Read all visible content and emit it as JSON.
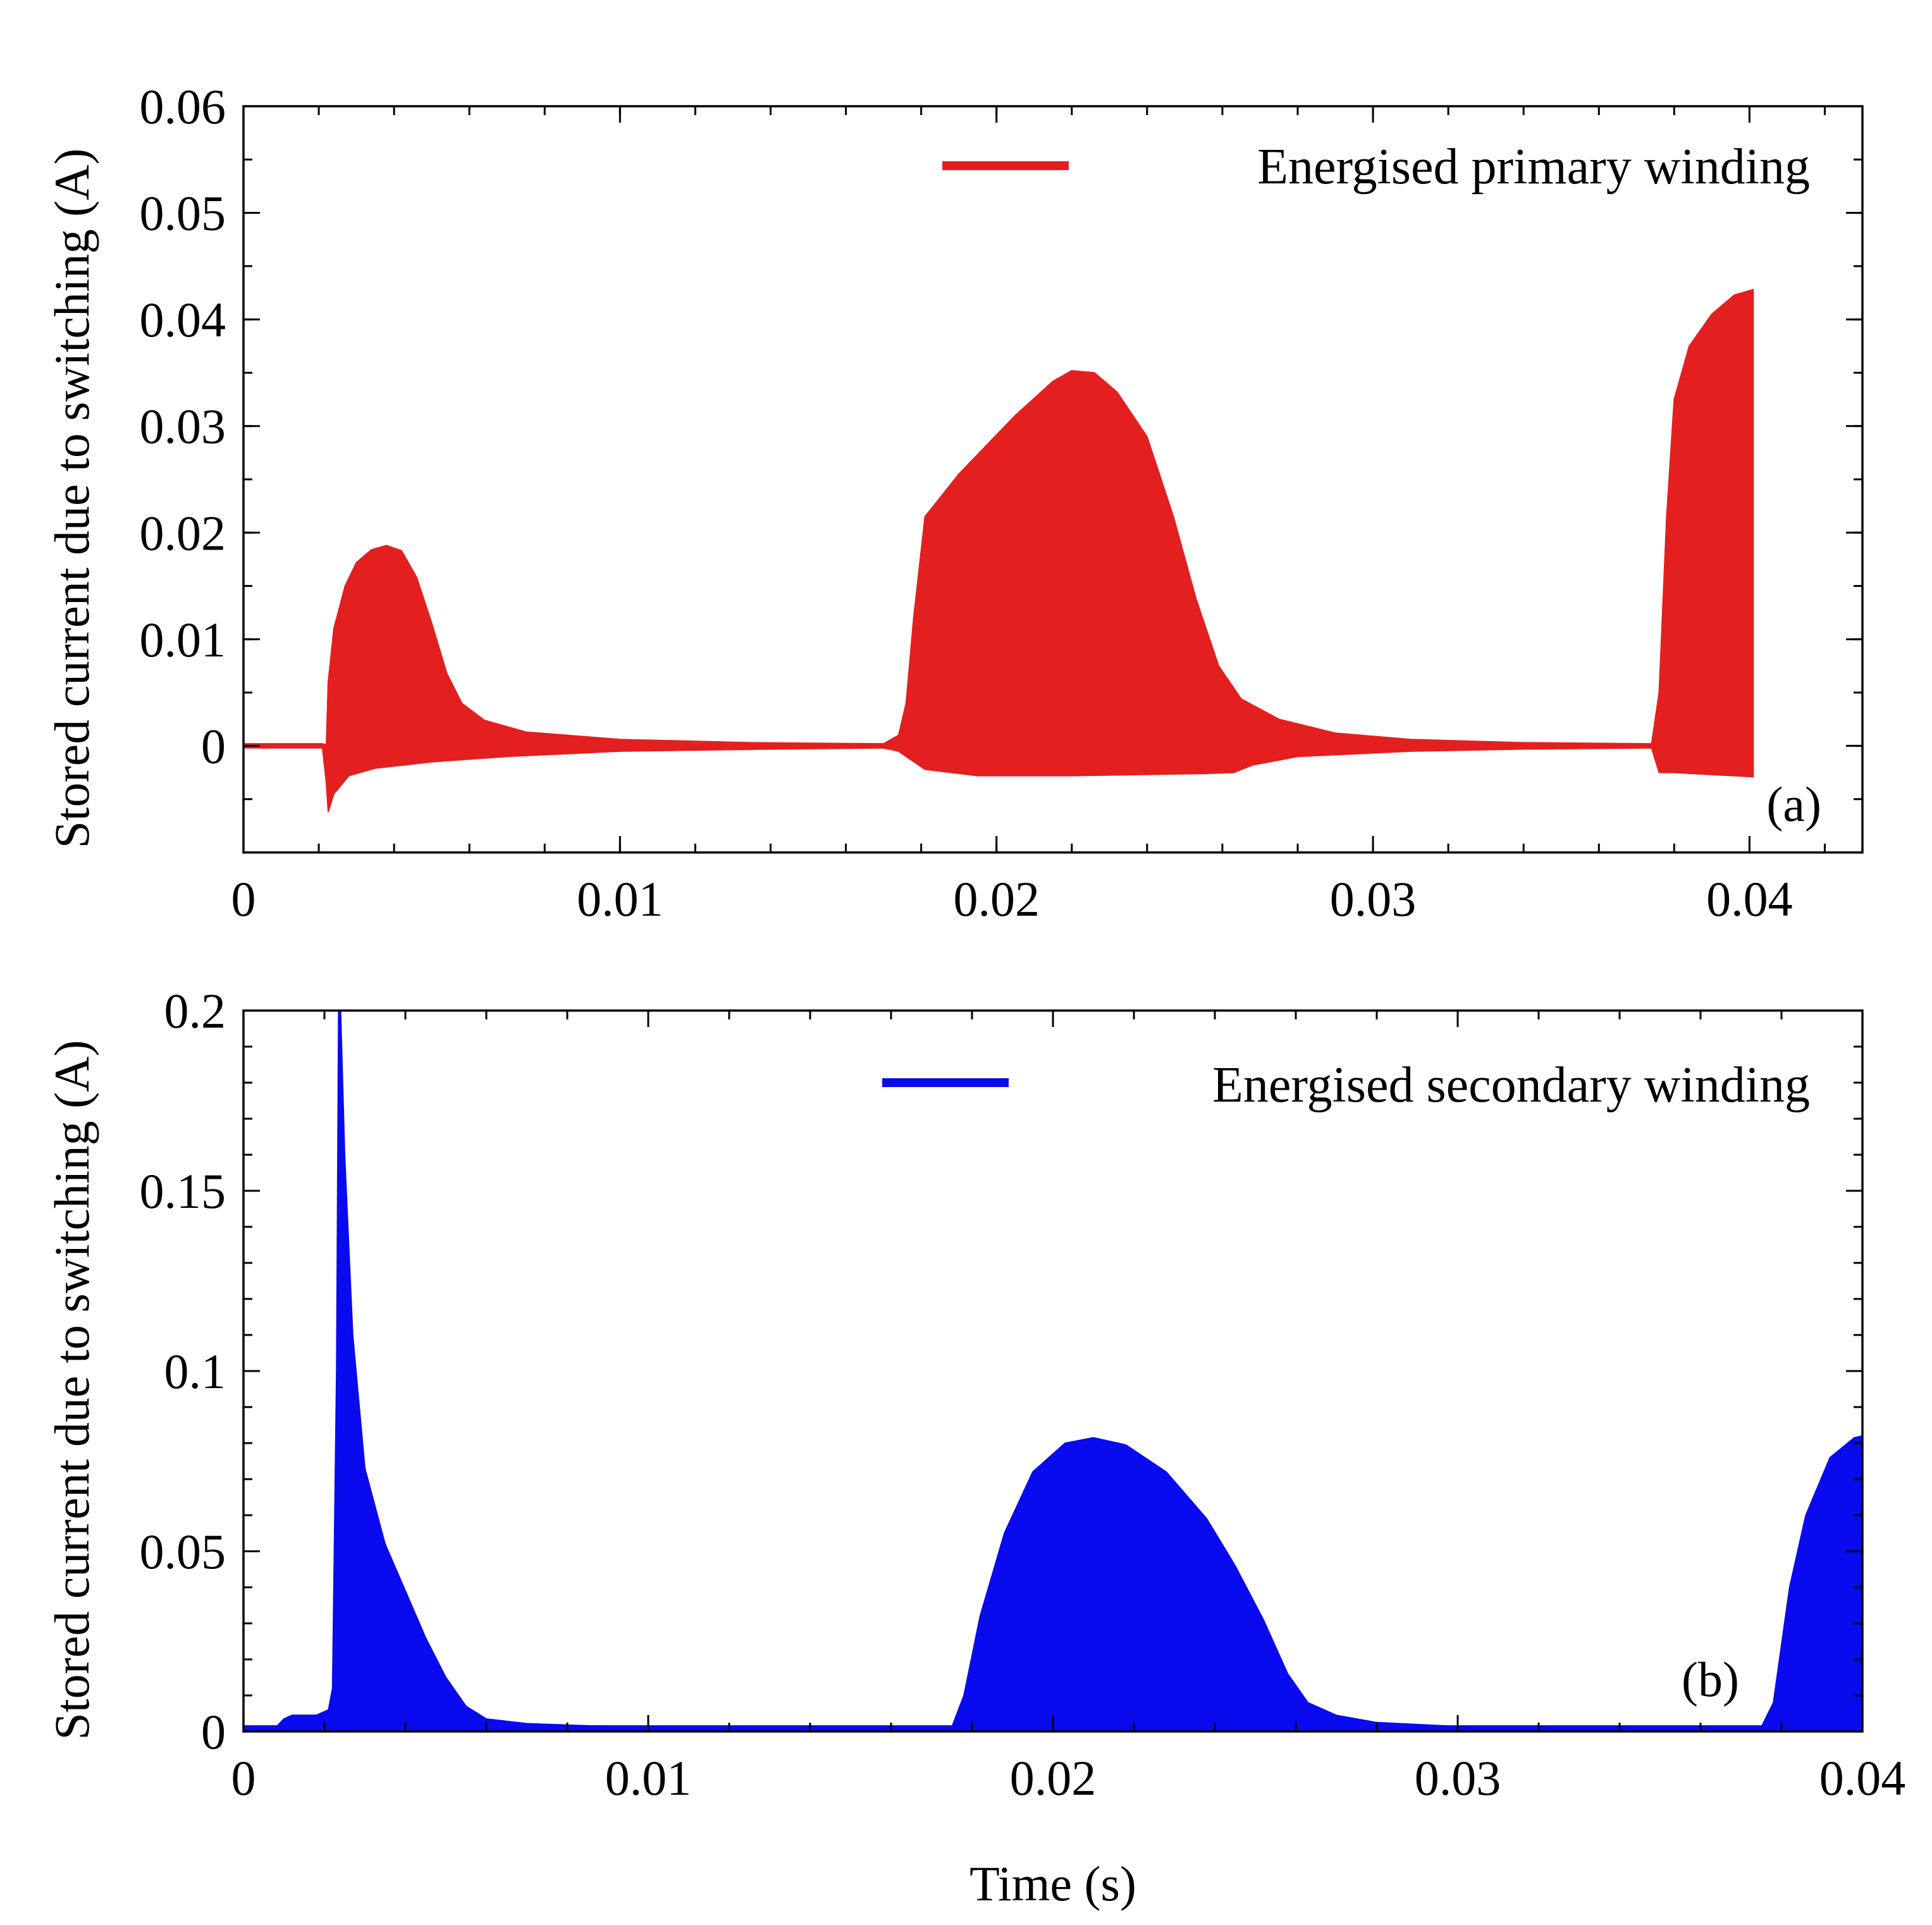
{
  "figure": {
    "xlabel": "Time (s)"
  },
  "chart_data": [
    {
      "type": "area",
      "panel": "(a)",
      "title": "",
      "ylabel": "Stored current due to switching (A)",
      "xlabel": "",
      "xlim": [
        0,
        0.043
      ],
      "ylim": [
        -0.01,
        0.06
      ],
      "x_ticks": [
        0,
        0.01,
        0.02,
        0.03,
        0.04
      ],
      "x_tick_labels": [
        "0",
        "0.01",
        "0.02",
        "0.03",
        "0.04"
      ],
      "x_minor_step": 0.002,
      "y_ticks": [
        0,
        0.01,
        0.02,
        0.03,
        0.04,
        0.05,
        0.06
      ],
      "y_tick_labels": [
        "0",
        "0.01",
        "0.02",
        "0.03",
        "0.04",
        "0.05",
        "0.06"
      ],
      "y_minor_step": 0.005,
      "legend": "top-right",
      "series": [
        {
          "name": "Energised primary winding",
          "color": "#e41f1f",
          "description": "oscillation envelope",
          "baseline": 0,
          "upper": [
            [
              0,
              0.0002
            ],
            [
              0.0021,
              0.0002
            ],
            [
              0.0022,
              0.0001
            ],
            [
              0.00225,
              0.006
            ],
            [
              0.0024,
              0.011
            ],
            [
              0.0027,
              0.015
            ],
            [
              0.003,
              0.0172
            ],
            [
              0.0034,
              0.0184
            ],
            [
              0.0038,
              0.0188
            ],
            [
              0.0042,
              0.0183
            ],
            [
              0.0046,
              0.0158
            ],
            [
              0.005,
              0.0115
            ],
            [
              0.0054,
              0.0068
            ],
            [
              0.0058,
              0.004
            ],
            [
              0.0064,
              0.0024
            ],
            [
              0.0075,
              0.0013
            ],
            [
              0.01,
              0.0006
            ],
            [
              0.0135,
              0.0003
            ],
            [
              0.017,
              0.0002
            ],
            [
              0.0174,
              0.001
            ],
            [
              0.0176,
              0.004
            ],
            [
              0.0178,
              0.012
            ],
            [
              0.0181,
              0.0215
            ],
            [
              0.019,
              0.0255
            ],
            [
              0.0205,
              0.031
            ],
            [
              0.0215,
              0.0342
            ],
            [
              0.022,
              0.0352
            ],
            [
              0.0226,
              0.035
            ],
            [
              0.0232,
              0.0332
            ],
            [
              0.024,
              0.029
            ],
            [
              0.0247,
              0.0215
            ],
            [
              0.0253,
              0.0138
            ],
            [
              0.0259,
              0.0075
            ],
            [
              0.0265,
              0.0044
            ],
            [
              0.0275,
              0.0025
            ],
            [
              0.029,
              0.0012
            ],
            [
              0.031,
              0.0006
            ],
            [
              0.034,
              0.0003
            ],
            [
              0.0374,
              0.0002
            ],
            [
              0.0376,
              0.005
            ],
            [
              0.0378,
              0.0215
            ],
            [
              0.038,
              0.0325
            ],
            [
              0.0384,
              0.0375
            ],
            [
              0.039,
              0.0405
            ],
            [
              0.0396,
              0.0423
            ],
            [
              0.0401,
              0.0428
            ]
          ],
          "lower": [
            [
              0,
              -0.0002
            ],
            [
              0.0021,
              -0.0002
            ],
            [
              0.0022,
              -0.0035
            ],
            [
              0.00225,
              -0.0062
            ],
            [
              0.0024,
              -0.0045
            ],
            [
              0.0028,
              -0.0028
            ],
            [
              0.0035,
              -0.0021
            ],
            [
              0.005,
              -0.0015
            ],
            [
              0.007,
              -0.001
            ],
            [
              0.01,
              -0.0005
            ],
            [
              0.014,
              -0.0003
            ],
            [
              0.017,
              -0.0002
            ],
            [
              0.0174,
              -0.0005
            ],
            [
              0.0176,
              -0.001
            ],
            [
              0.0181,
              -0.0022
            ],
            [
              0.0195,
              -0.0028
            ],
            [
              0.022,
              -0.0028
            ],
            [
              0.0255,
              -0.0026
            ],
            [
              0.0263,
              -0.0025
            ],
            [
              0.0268,
              -0.0018
            ],
            [
              0.028,
              -0.001
            ],
            [
              0.031,
              -0.0005
            ],
            [
              0.034,
              -0.0003
            ],
            [
              0.0374,
              -0.0002
            ],
            [
              0.0376,
              -0.0025
            ],
            [
              0.038,
              -0.0025
            ],
            [
              0.039,
              -0.0027
            ],
            [
              0.0401,
              -0.0029
            ]
          ]
        }
      ]
    },
    {
      "type": "area",
      "panel": "(b)",
      "title": "",
      "ylabel": "Stored current due to switching (A)",
      "xlabel": "Time (s)",
      "xlim": [
        0,
        0.04
      ],
      "ylim": [
        0,
        0.2
      ],
      "x_ticks": [
        0,
        0.01,
        0.02,
        0.03,
        0.04
      ],
      "x_tick_labels": [
        "0",
        "0.01",
        "0.02",
        "0.03",
        "0.04"
      ],
      "x_minor_step": 0.002,
      "y_ticks": [
        0,
        0.05,
        0.1,
        0.15,
        0.2
      ],
      "y_tick_labels": [
        "0",
        "0.05",
        "0.1",
        "0.15",
        "0.2"
      ],
      "y_minor_step": 0.01,
      "legend": "top-right",
      "series": [
        {
          "name": "Energised secondary winding",
          "color": "#0a0aee",
          "description": "oscillation envelope",
          "baseline": 0.0012,
          "upper": [
            [
              0,
              0.0012
            ],
            [
              0.0008,
              0.0012
            ],
            [
              0.001,
              0.0035
            ],
            [
              0.0012,
              0.0045
            ],
            [
              0.0018,
              0.0045
            ],
            [
              0.0021,
              0.006
            ],
            [
              0.0022,
              0.012
            ],
            [
              0.0023,
              0.1
            ],
            [
              0.00235,
              0.2
            ],
            [
              0.0024,
              0.2
            ],
            [
              0.0025,
              0.16
            ],
            [
              0.0027,
              0.11
            ],
            [
              0.003,
              0.073
            ],
            [
              0.0035,
              0.052
            ],
            [
              0.004,
              0.039
            ],
            [
              0.0045,
              0.026
            ],
            [
              0.005,
              0.015
            ],
            [
              0.0055,
              0.007
            ],
            [
              0.006,
              0.0035
            ],
            [
              0.007,
              0.0022
            ],
            [
              0.0085,
              0.0016
            ],
            [
              0.011,
              0.0012
            ],
            [
              0.0175,
              0.0012
            ],
            [
              0.0178,
              0.01
            ],
            [
              0.0182,
              0.032
            ],
            [
              0.0188,
              0.055
            ],
            [
              0.0195,
              0.072
            ],
            [
              0.0203,
              0.08
            ],
            [
              0.021,
              0.0815
            ],
            [
              0.0218,
              0.0795
            ],
            [
              0.0228,
              0.072
            ],
            [
              0.0238,
              0.059
            ],
            [
              0.0245,
              0.046
            ],
            [
              0.0252,
              0.031
            ],
            [
              0.0258,
              0.016
            ],
            [
              0.0263,
              0.008
            ],
            [
              0.027,
              0.0045
            ],
            [
              0.028,
              0.0025
            ],
            [
              0.03,
              0.0014
            ],
            [
              0.0375,
              0.0012
            ],
            [
              0.0378,
              0.008
            ],
            [
              0.0382,
              0.04
            ],
            [
              0.0386,
              0.06
            ],
            [
              0.0392,
              0.076
            ],
            [
              0.0398,
              0.0815
            ],
            [
              0.04,
              0.082
            ]
          ],
          "lower": [
            [
              0,
              0.0004
            ],
            [
              0.0023,
              0.0004
            ],
            [
              0.0024,
              0.0002
            ],
            [
              0.04,
              0.0002
            ]
          ]
        }
      ]
    }
  ]
}
